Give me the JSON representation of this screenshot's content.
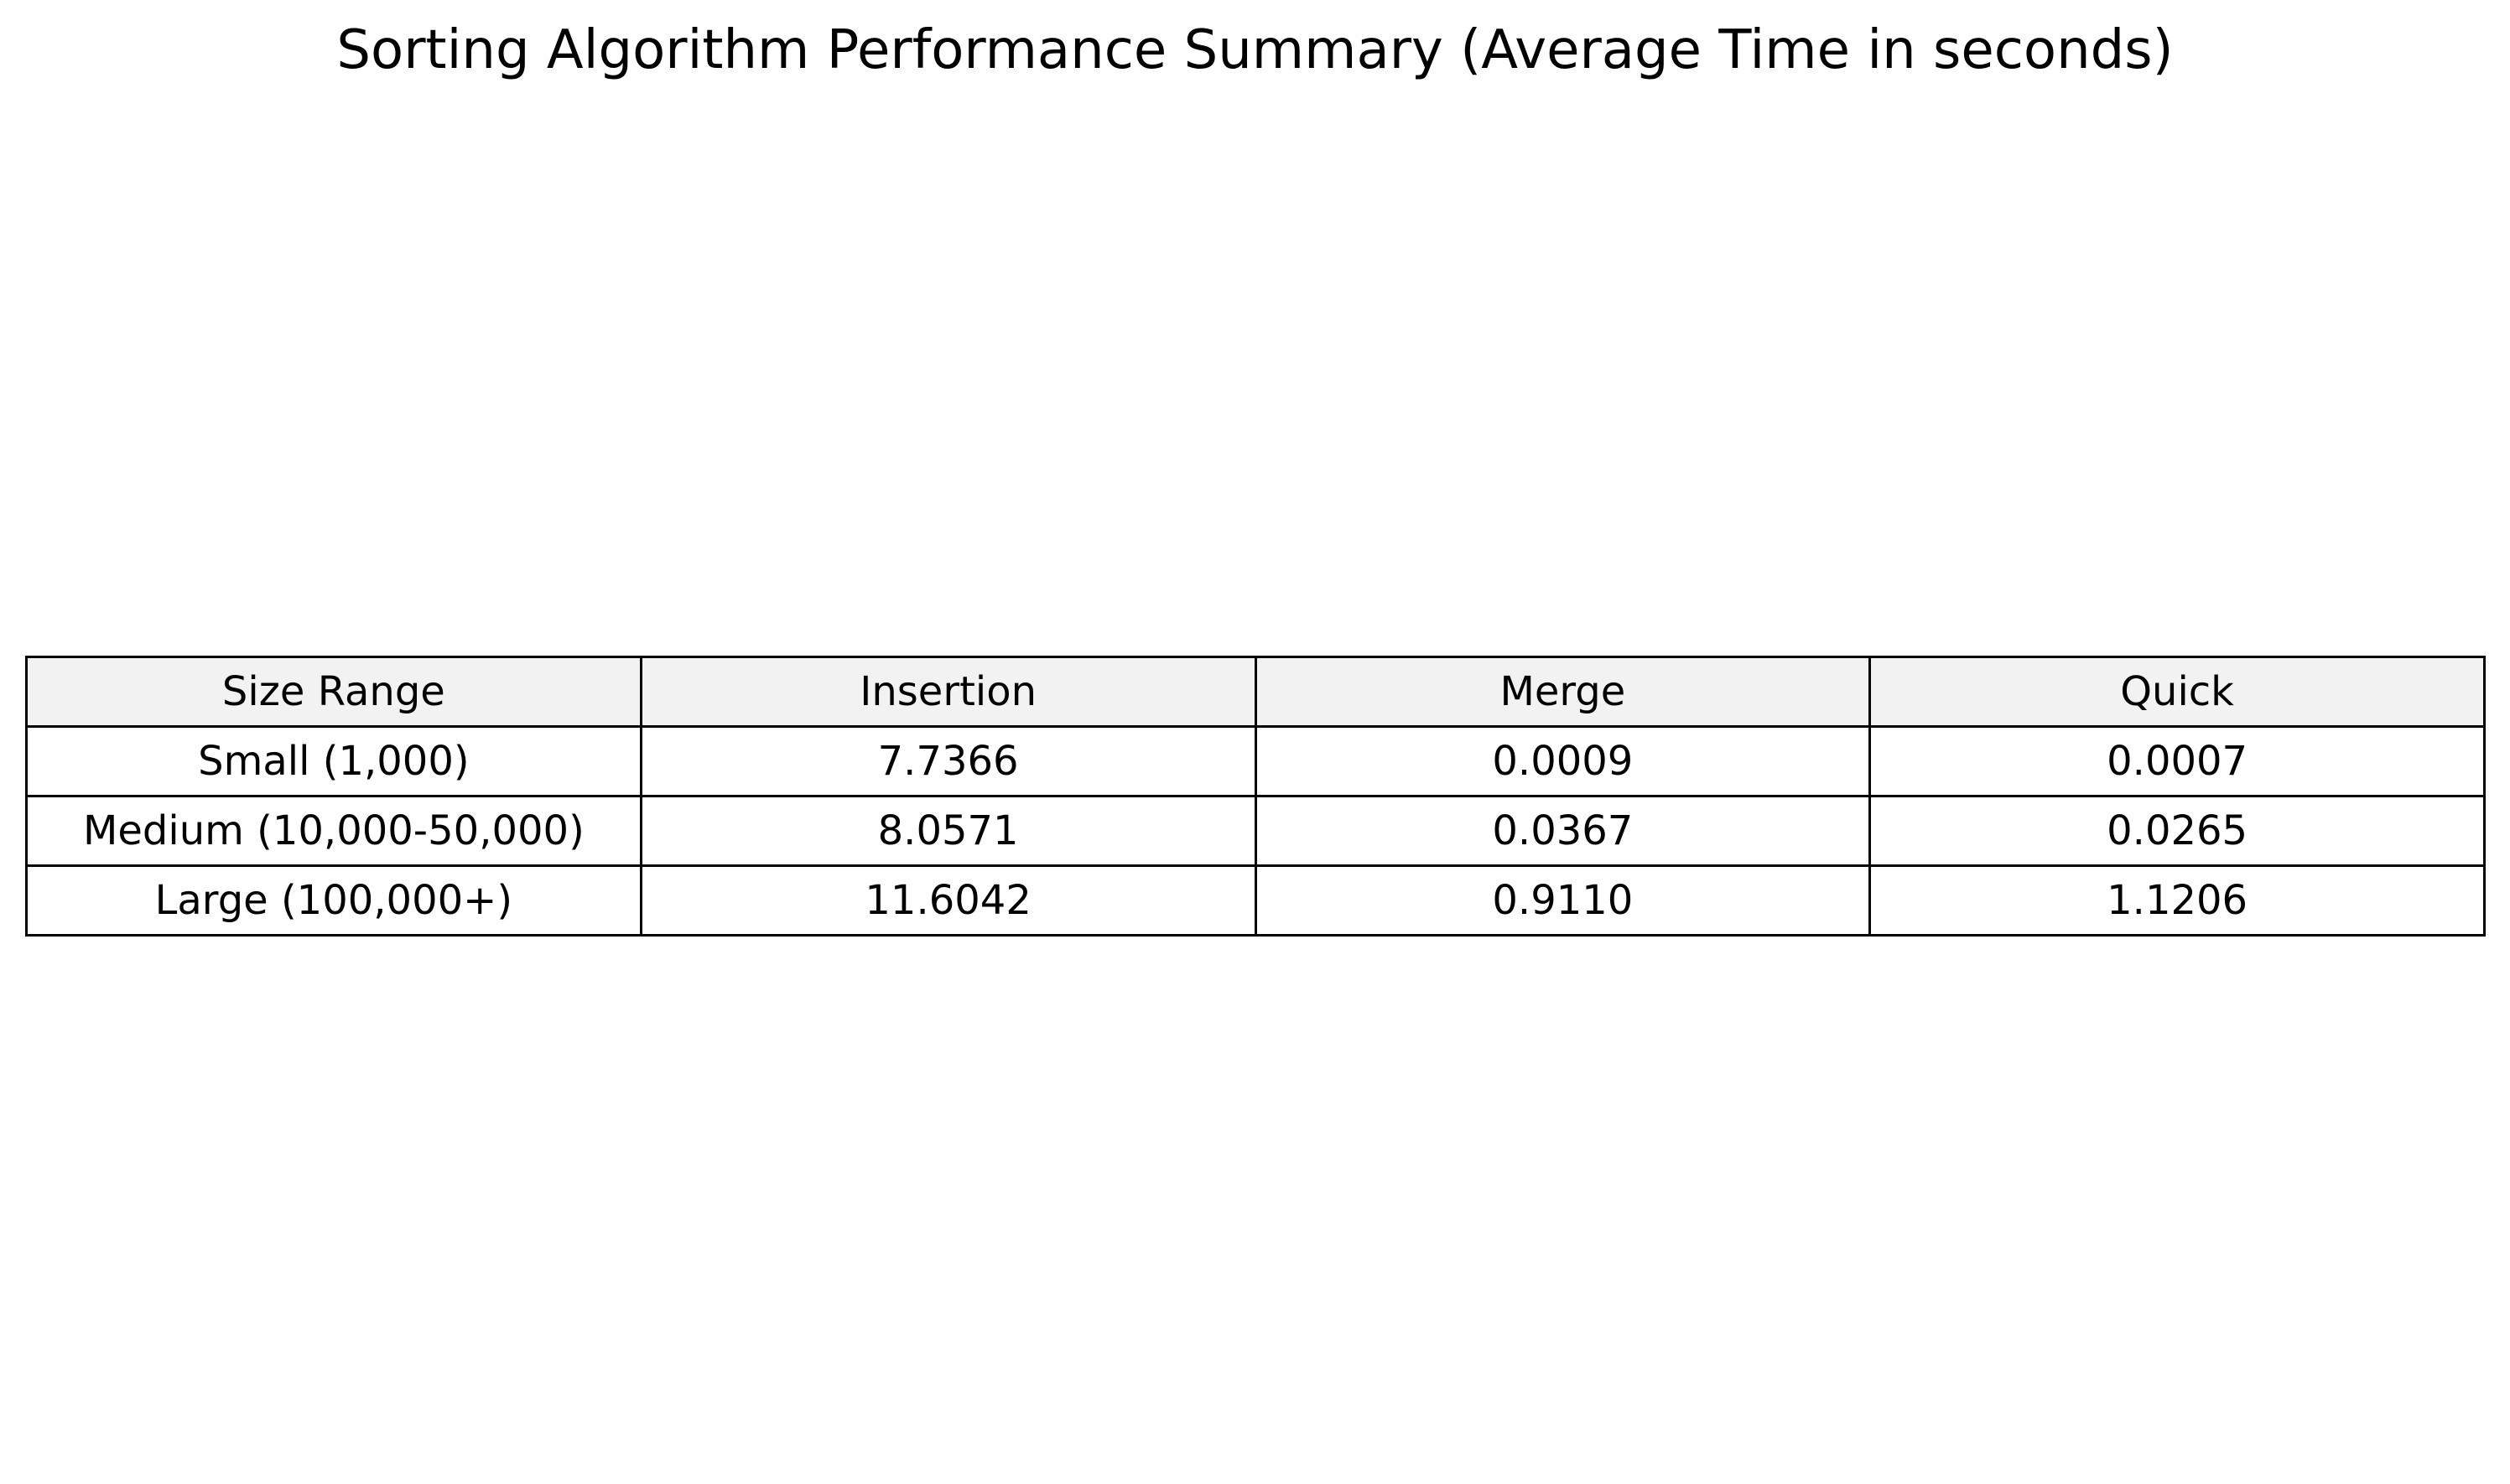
{
  "chart_data": {
    "type": "table",
    "title": "Sorting Algorithm Performance Summary (Average Time in seconds)",
    "columns": [
      "Size Range",
      "Insertion",
      "Merge",
      "Quick"
    ],
    "rows": [
      [
        "Small (1,000)",
        "7.7366",
        "0.0009",
        "0.0007"
      ],
      [
        "Medium (10,000-50,000)",
        "8.0571",
        "0.0367",
        "0.0265"
      ],
      [
        "Large (100,000+)",
        "11.6042",
        "0.9110",
        "1.1206"
      ]
    ],
    "header_background": "#f2f2f2",
    "cell_background": "#ffffff",
    "border_color": "#000000"
  }
}
